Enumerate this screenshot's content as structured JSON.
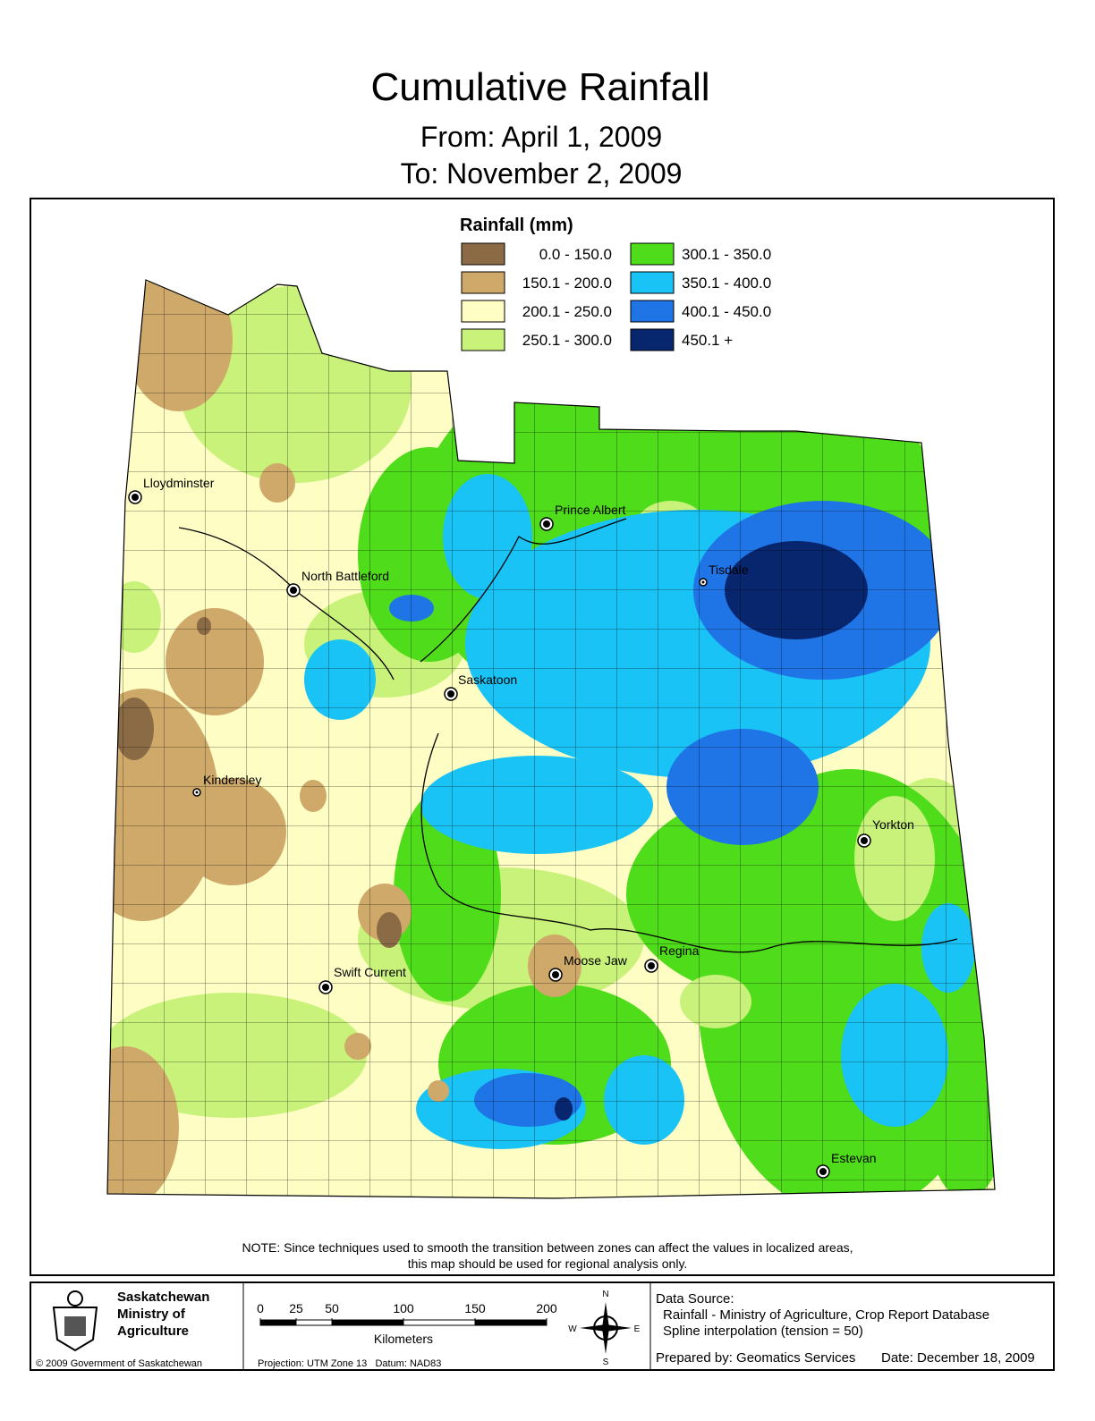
{
  "header": {
    "title": "Cumulative Rainfall",
    "from": "From: April 1, 2009",
    "to": "To: November 2, 2009"
  },
  "legend": {
    "title": "Rainfall (mm)",
    "classes": [
      {
        "label": "0.0 - 150.0",
        "color": "#8b6b45"
      },
      {
        "label": "150.1 - 200.0",
        "color": "#cfa96a"
      },
      {
        "label": "200.1 - 250.0",
        "color": "#fdfdc4"
      },
      {
        "label": "250.1 - 300.0",
        "color": "#c8f27a"
      },
      {
        "label": "300.1 - 350.0",
        "color": "#4fdc1a"
      },
      {
        "label": "350.1 - 400.0",
        "color": "#1ac3f5"
      },
      {
        "label": "400.1 - 450.0",
        "color": "#1f74e6"
      },
      {
        "label": "450.1 +",
        "color": "#07266e"
      }
    ]
  },
  "cities": [
    "Lloydminster",
    "Prince Albert",
    "North Battleford",
    "Tisdale",
    "Saskatoon",
    "Kindersley",
    "Yorkton",
    "Moose Jaw",
    "Regina",
    "Swift Current",
    "Estevan"
  ],
  "note": [
    "NOTE: Since techniques used to smooth the transition between zones can affect the values in localized areas,",
    "this map should be used for regional analysis only."
  ],
  "footer": {
    "ministry": [
      "Saskatchewan",
      "Ministry of",
      "Agriculture"
    ],
    "copyright": "© 2009 Government of Saskatchewan",
    "scale": {
      "ticks": [
        0,
        25,
        50,
        100,
        150,
        200
      ],
      "unit": "Kilometers"
    },
    "projection": "Projection: UTM Zone 13   Datum: NAD83",
    "compass": {
      "n": "N",
      "s": "S",
      "e": "E",
      "w": "W"
    },
    "data_source": [
      "Data Source:",
      "Rainfall - Ministry of Agriculture, Crop Report Database",
      "Spline interpolation (tension = 50)"
    ],
    "prepared_by": "Prepared by: Geomatics Services",
    "date": "Date: December 18, 2009"
  }
}
